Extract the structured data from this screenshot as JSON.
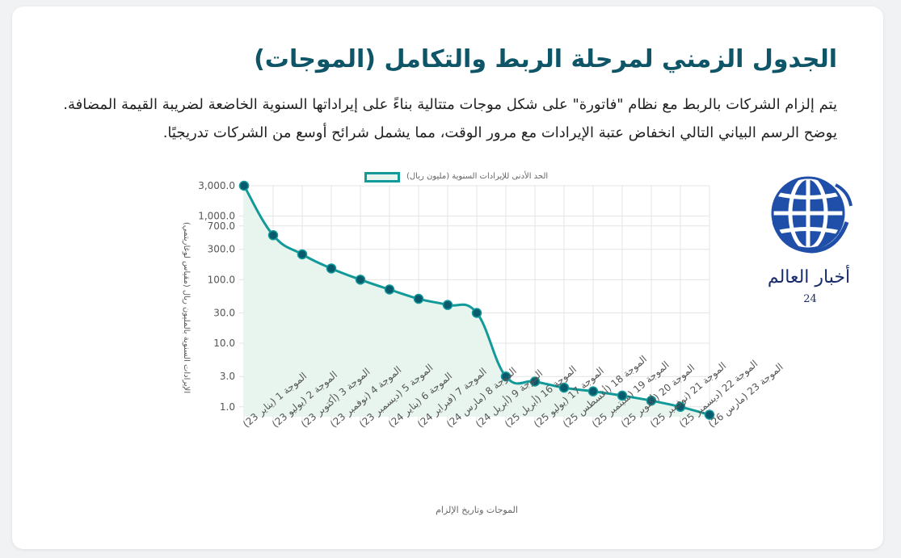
{
  "heading": "الجدول الزمني لمرحلة الربط والتكامل (الموجات)",
  "description": "يتم إلزام الشركات بالربط مع نظام \"فاتورة\" على شكل موجات متتالية بناءً على إيراداتها السنوية الخاضعة لضريبة القيمة المضافة. يوضح الرسم البياني التالي انخفاض عتبة الإيرادات مع مرور الوقت، مما يشمل شرائح أوسع من الشركات تدريجيًا.",
  "logo": {
    "text": "أخبار العالم",
    "number": "24"
  },
  "colors": {
    "line": "#129a9a",
    "fill": "#e8f5ef",
    "point": "#0a5a6e",
    "title": "#0e5567"
  },
  "chart_data": {
    "type": "line",
    "yscale": "log",
    "ylim": [
      0.7,
      3000
    ],
    "ytick_values": [
      1,
      3,
      10,
      30,
      100,
      300,
      700,
      1000,
      3000
    ],
    "ytick_labels": [
      "1.0",
      "3.0",
      "10.0",
      "30.0",
      "100.0",
      "300.0",
      "700.0",
      "1,000.0",
      "3,000.0"
    ],
    "grid": true,
    "legend": "top",
    "xlabel": "الموجات وتاريخ الإلزام",
    "ylabel": "الإيرادات السنوية بالمليون ريال (مقياس لوغاريتمي)",
    "categories": [
      "الموجة 1 (يناير 23)",
      "الموجة 2 (يوليو 23)",
      "الموجة 3 (أكتوبر 23)",
      "الموجة 4 (نوفمبر 23)",
      "الموجة 5 (ديسمبر 23)",
      "الموجة 6 (يناير 24)",
      "الموجة 7 (فبراير 24)",
      "الموجة 8 (مارس 24)",
      "الموجة 9 (أبريل 24)",
      "الموجة 16 (أبريل 25)",
      "الموجة 17 (يوليو 25)",
      "الموجة 18 (أغسطس 25)",
      "الموجة 19 (سبتمبر 25)",
      "الموجة 20 (أكتوبر 25)",
      "الموجة 21 (نوفمبر 25)",
      "الموجة 22 (ديسمبر 25)",
      "الموجة 23 (مارس 26)"
    ],
    "series": [
      {
        "name": "الحد الأدنى للإيرادات السنوية (مليون ريال)",
        "values": [
          3000,
          500,
          250,
          150,
          100,
          70,
          50,
          40,
          30,
          3,
          2.5,
          2,
          1.75,
          1.5,
          1.25,
          1,
          0.75
        ]
      }
    ]
  }
}
